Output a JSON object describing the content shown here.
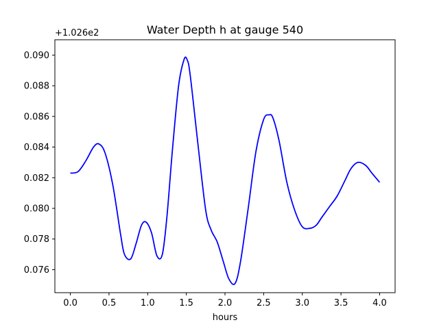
{
  "chart_data": {
    "type": "line",
    "title": "Water Depth h at gauge 540",
    "xlabel": "hours",
    "ylabel": "",
    "offset_text": "+1.026e2",
    "xlim": [
      -0.2,
      4.2
    ],
    "ylim": [
      0.0745,
      0.091
    ],
    "grid": false,
    "legend": "none",
    "x_ticks": [
      0.0,
      0.5,
      1.0,
      1.5,
      2.0,
      2.5,
      3.0,
      3.5,
      4.0
    ],
    "x_tick_labels": [
      "0.0",
      "0.5",
      "1.0",
      "1.5",
      "2.0",
      "2.5",
      "3.0",
      "3.5",
      "4.0"
    ],
    "y_ticks": [
      0.076,
      0.078,
      0.08,
      0.082,
      0.084,
      0.086,
      0.088,
      0.09
    ],
    "y_tick_labels": [
      "0.076",
      "0.078",
      "0.080",
      "0.082",
      "0.084",
      "0.086",
      "0.088",
      "0.090"
    ],
    "series": [
      {
        "color": "#0000ff",
        "x": [
          0.0,
          0.1,
          0.2,
          0.3,
          0.37,
          0.45,
          0.55,
          0.65,
          0.7,
          0.78,
          0.85,
          0.92,
          0.98,
          1.05,
          1.12,
          1.19,
          1.25,
          1.32,
          1.4,
          1.47,
          1.51,
          1.55,
          1.65,
          1.75,
          1.82,
          1.9,
          1.98,
          2.05,
          2.13,
          2.2,
          2.3,
          2.4,
          2.5,
          2.57,
          2.62,
          2.7,
          2.8,
          2.9,
          3.0,
          3.1,
          3.18,
          3.25,
          3.35,
          3.45,
          3.55,
          3.63,
          3.72,
          3.82,
          3.9,
          4.0
        ],
        "y": [
          0.0823,
          0.0824,
          0.0831,
          0.084,
          0.0842,
          0.0836,
          0.0815,
          0.0783,
          0.077,
          0.0767,
          0.0777,
          0.0789,
          0.0791,
          0.0784,
          0.0769,
          0.077,
          0.0795,
          0.0838,
          0.088,
          0.0897,
          0.0897,
          0.0887,
          0.0842,
          0.0799,
          0.0786,
          0.0778,
          0.0765,
          0.0754,
          0.0751,
          0.0765,
          0.08,
          0.0837,
          0.0858,
          0.0861,
          0.0859,
          0.0844,
          0.0817,
          0.0799,
          0.0788,
          0.0787,
          0.0789,
          0.0794,
          0.0801,
          0.0808,
          0.0818,
          0.0826,
          0.083,
          0.0828,
          0.0823,
          0.0817
        ]
      }
    ]
  }
}
